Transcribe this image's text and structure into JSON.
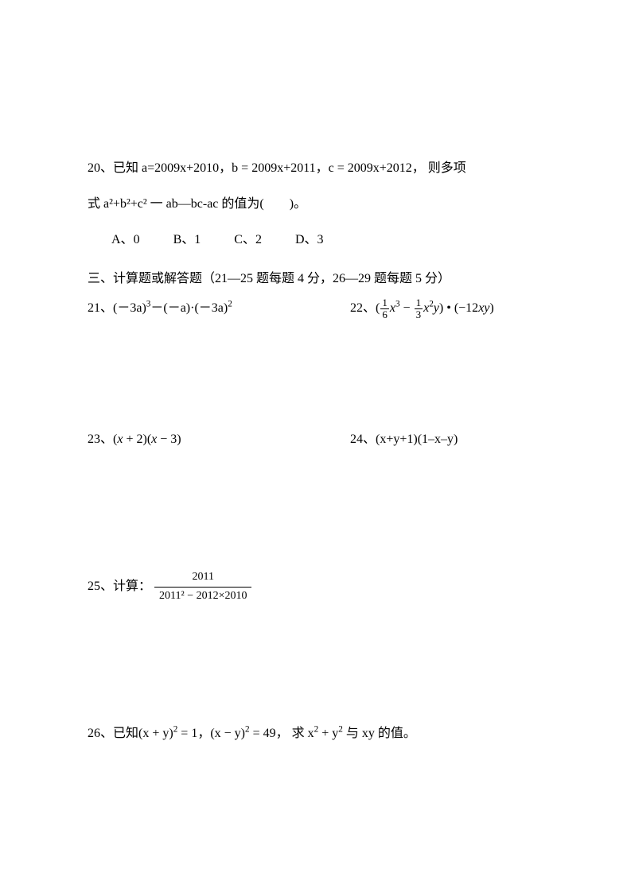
{
  "q20": {
    "line1_pre": "20、已知 ",
    "line1_a": "a=2009x+2010，",
    "line1_b": "b = 2009x+2011，",
    "line1_c": "c = 2009x+2012，",
    "line1_post": " 则多项",
    "line2_pre": "式 ",
    "line2_expr": "a²+b²+c² 一 ab—bc-ac",
    "line2_post": " 的值为(　　)。",
    "options": [
      {
        "label": "A、",
        "value": "0"
      },
      {
        "label": "B、",
        "value": "1"
      },
      {
        "label": "C、",
        "value": "2"
      },
      {
        "label": "D、",
        "value": "3"
      }
    ]
  },
  "section3": "三、计算题或解答题（21—25 题每题 4 分，26—29 题每题 5 分）",
  "q21": {
    "label": "21、",
    "expr_parts": [
      "(－3a)",
      "3",
      "－(－a)·(－3a)",
      "2"
    ]
  },
  "q22": {
    "label": "22、",
    "frac1_num": "1",
    "frac1_den": "6",
    "mid1": "x",
    "sup1": "3",
    "minus": " − ",
    "frac2_num": "1",
    "frac2_den": "3",
    "mid2": "x",
    "sup2": "2",
    "mid3": "y",
    "close": ")",
    "dot": " • ",
    "tail": "(−12",
    "tail_xy": "xy",
    "tail_close": ")"
  },
  "q23": {
    "label": "23、",
    "p1": "(",
    "x1": "x",
    "plus": " + 2",
    "p2": ")(",
    "x2": "x",
    "minus": " − 3",
    "p3": ")"
  },
  "q24": {
    "label": "24、",
    "expr": "(x+y+1)(1–x–y)"
  },
  "q25": {
    "label": "25、计算：",
    "num": "2011",
    "den": "2011² − 2012×2010"
  },
  "q26": {
    "label": "26、已知",
    "p1": "(x + y)",
    "sup1": "2",
    "eq1": " = 1，",
    "p2": "(x − y)",
    "sup2": "2",
    "eq2": " = 49，",
    "ask_pre": " 求 ",
    "x2": "x",
    "supx": "2",
    "plus": " + ",
    "y2": "y",
    "supy": "2",
    "and": " 与 ",
    "xy": "xy",
    "post": " 的值。"
  }
}
